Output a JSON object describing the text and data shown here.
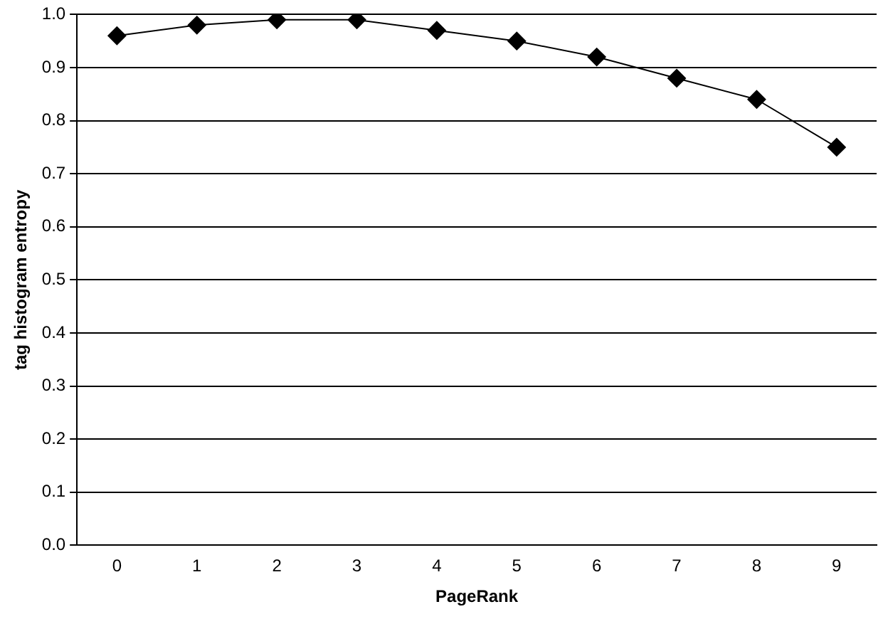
{
  "chart_data": {
    "type": "line",
    "xlabel": "PageRank",
    "ylabel": "tag histogram entropy",
    "categories": [
      "0",
      "1",
      "2",
      "3",
      "4",
      "5",
      "6",
      "7",
      "8",
      "9"
    ],
    "series": [
      {
        "color": "#000000",
        "values": [
          0.96,
          0.98,
          0.99,
          0.99,
          0.97,
          0.95,
          0.92,
          0.88,
          0.84,
          0.75
        ]
      }
    ],
    "ylim": [
      0,
      1
    ],
    "yticks": [
      {
        "value": 0,
        "label": "0.0"
      },
      {
        "value": 0.1,
        "label": "0.1"
      },
      {
        "value": 0.2,
        "label": "0.2"
      },
      {
        "value": 0.3,
        "label": "0.3"
      },
      {
        "value": 0.4,
        "label": "0.4"
      },
      {
        "value": 0.5,
        "label": "0.5"
      },
      {
        "value": 0.6,
        "label": "0.6"
      },
      {
        "value": 0.7,
        "label": "0.7"
      },
      {
        "value": 0.8,
        "label": "0.8"
      },
      {
        "value": 0.9,
        "label": "0.9"
      },
      {
        "value": 1,
        "label": "1.0"
      }
    ],
    "grid": "y",
    "legend": false,
    "marker": "diamond",
    "line_style": "solid"
  }
}
